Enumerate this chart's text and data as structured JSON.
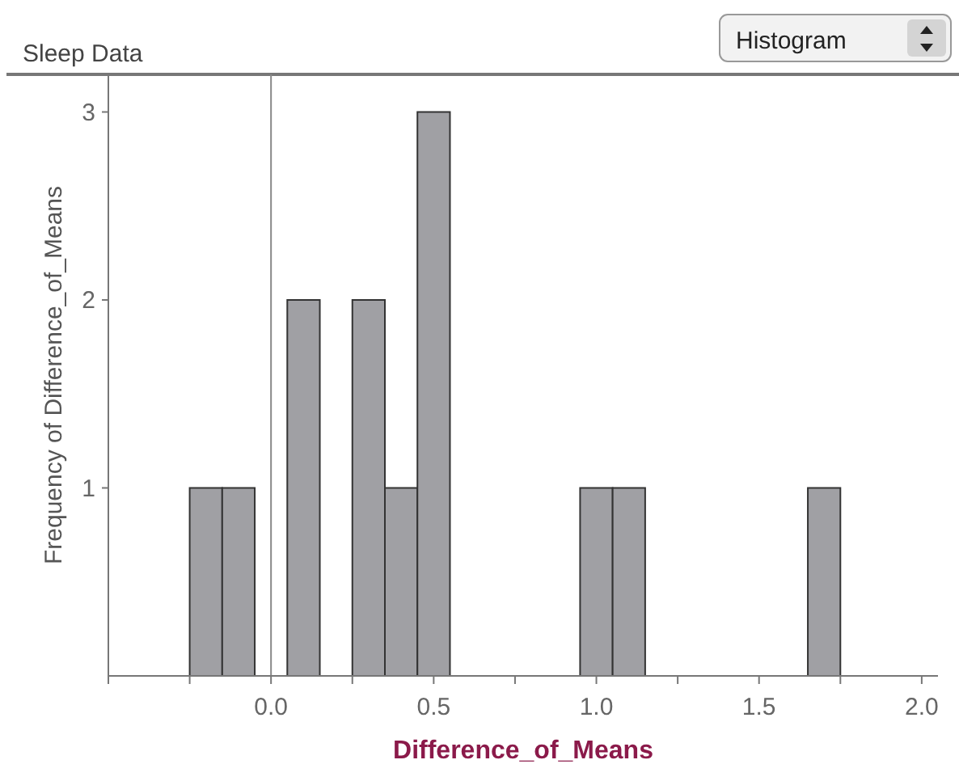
{
  "chart_data": {
    "type": "histogram",
    "title": "Sleep Data",
    "xlabel": "Difference_of_Means",
    "ylabel": "Frequency of Difference_of_Means",
    "bins": [
      -0.25,
      -0.15,
      -0.05,
      0.05,
      0.15,
      0.25,
      0.35,
      0.45,
      0.55,
      0.65,
      0.75,
      0.85,
      0.95,
      1.05,
      1.15,
      1.25,
      1.35,
      1.45,
      1.55,
      1.65,
      1.75
    ],
    "values": [
      1,
      1,
      0,
      2,
      0,
      2,
      1,
      3,
      0,
      0,
      0,
      0,
      1,
      1,
      0,
      0,
      0,
      0,
      0,
      1
    ],
    "color": "#a0a0a4",
    "xlim": [
      -0.5,
      2.05
    ],
    "xticks": [
      {
        "value": -0.5,
        "label": null
      },
      {
        "value": -0.25,
        "label": null
      },
      {
        "value": 0,
        "label": "0.0"
      },
      {
        "value": 0.25,
        "label": null
      },
      {
        "value": 0.5,
        "label": "0.5"
      },
      {
        "value": 0.75,
        "label": null
      },
      {
        "value": 1,
        "label": "1.0"
      },
      {
        "value": 1.25,
        "label": null
      },
      {
        "value": 1.5,
        "label": "1.5"
      },
      {
        "value": 1.75,
        "label": null
      },
      {
        "value": 2,
        "label": "2.0"
      }
    ],
    "ylim": [
      0,
      3.2
    ],
    "yticks": [
      1,
      2,
      3
    ],
    "ref_lines": [
      {
        "axis": "x",
        "value": 0,
        "color": "#888888"
      }
    ],
    "annotations": [
      "Histogram"
    ],
    "grid": false
  }
}
